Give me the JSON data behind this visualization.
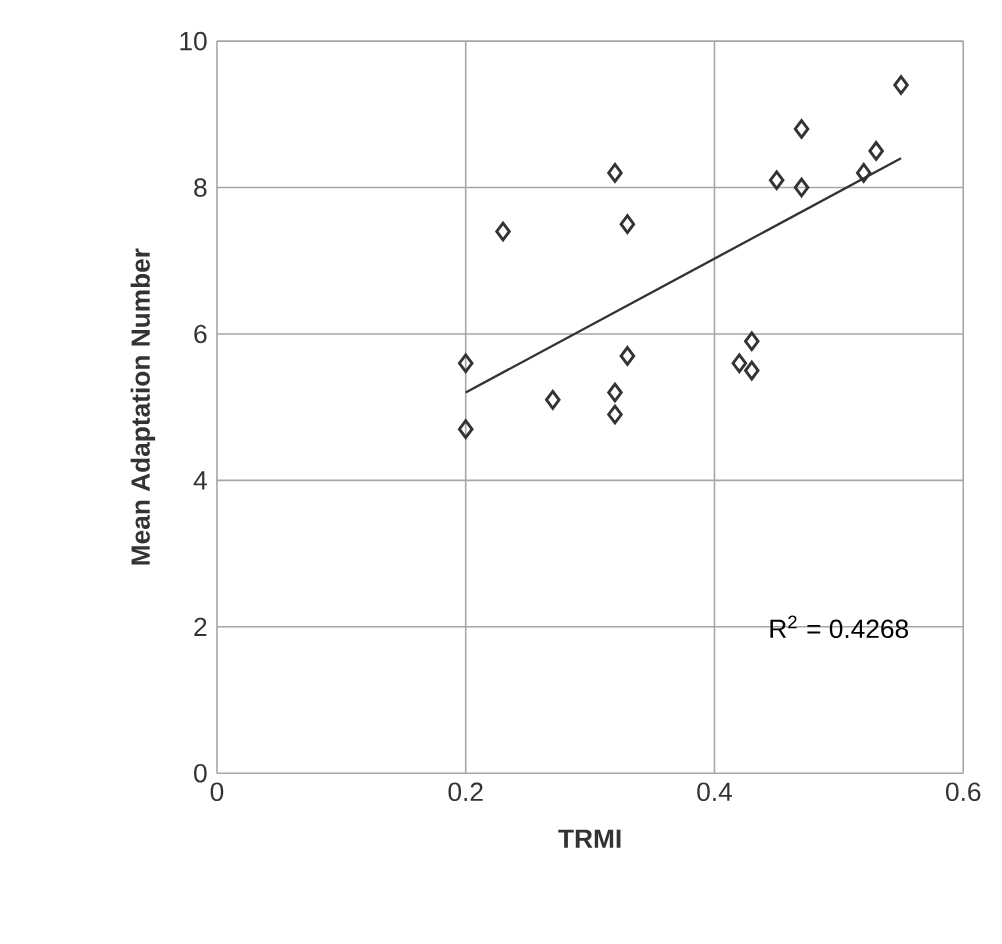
{
  "chart_data": {
    "type": "scatter",
    "xlabel": "TRMI",
    "ylabel": "Mean Adaptation Number",
    "xlim": [
      0,
      0.6
    ],
    "ylim": [
      0,
      10
    ],
    "xticks": [
      0,
      0.2,
      0.4,
      0.6
    ],
    "yticks": [
      0,
      2,
      4,
      6,
      8,
      10
    ],
    "grid": true,
    "marker": "diamond",
    "series": [
      {
        "type": "scatter",
        "color": "#333333",
        "x": [
          0.55,
          0.47,
          0.53,
          0.52,
          0.45,
          0.47,
          0.32,
          0.23,
          0.33,
          0.43,
          0.42,
          0.43,
          0.2,
          0.33,
          0.27,
          0.32,
          0.32,
          0.2
        ],
        "values": [
          9.4,
          8.8,
          8.5,
          8.2,
          8.1,
          8.0,
          8.2,
          7.4,
          7.5,
          5.9,
          5.6,
          5.5,
          5.6,
          5.7,
          5.1,
          5.2,
          4.9,
          4.7
        ]
      },
      {
        "type": "line",
        "color": "#333333",
        "marker": "none",
        "x": [
          0.2,
          0.55
        ],
        "values": [
          5.2,
          8.4
        ]
      }
    ],
    "annotations": [
      "R$^{2}$ = 0.4268"
    ]
  }
}
